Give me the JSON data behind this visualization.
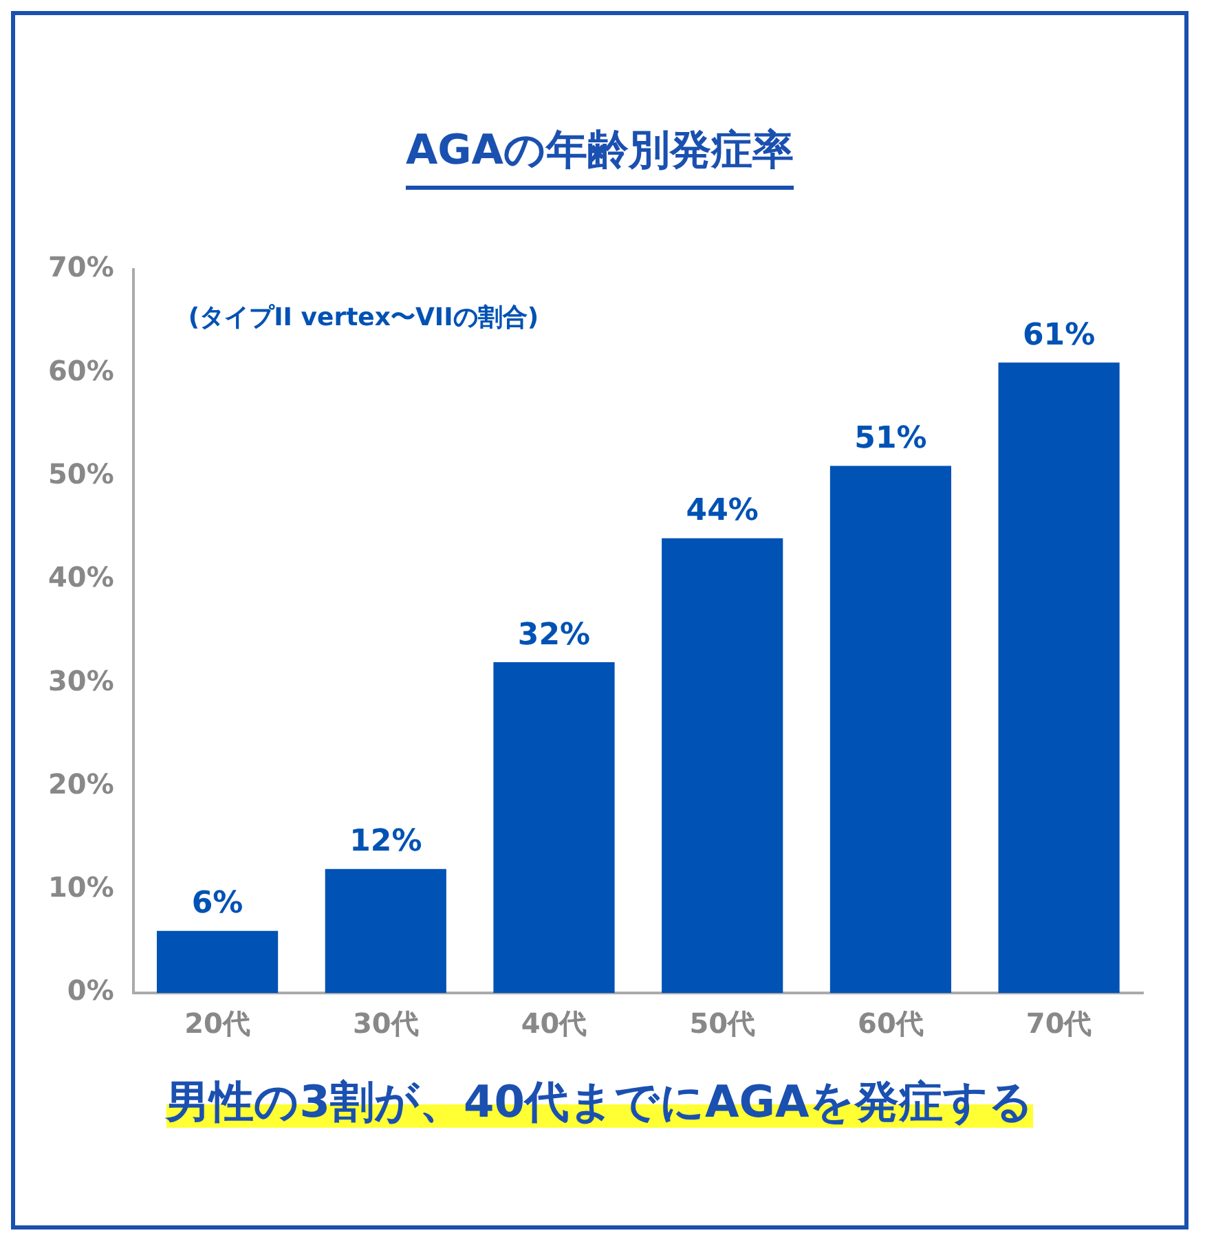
{
  "chart_data": {
    "type": "bar",
    "title": "AGAの年齢別発症率",
    "subtitle": "(タイプII vertex〜VIIの割合)",
    "categories": [
      "20代",
      "30代",
      "40代",
      "50代",
      "60代",
      "70代"
    ],
    "values": [
      6,
      12,
      32,
      44,
      51,
      61
    ],
    "color": "#0052b4",
    "value_labels": [
      "6%",
      "12%",
      "32%",
      "44%",
      "51%",
      "61%"
    ],
    "ylim": [
      0,
      70
    ],
    "yticks": [
      {
        "value": 0,
        "label": "0%"
      },
      {
        "value": 10,
        "label": "10%"
      },
      {
        "value": 20,
        "label": "20%"
      },
      {
        "value": 30,
        "label": "30%"
      },
      {
        "value": 40,
        "label": "40%"
      },
      {
        "value": 50,
        "label": "50%"
      },
      {
        "value": 60,
        "label": "60%"
      },
      {
        "value": 70,
        "label": "70%"
      }
    ],
    "grid": false,
    "legend": false,
    "annotations": [
      "男性の3割が、40代までにAGAを発症する"
    ]
  }
}
